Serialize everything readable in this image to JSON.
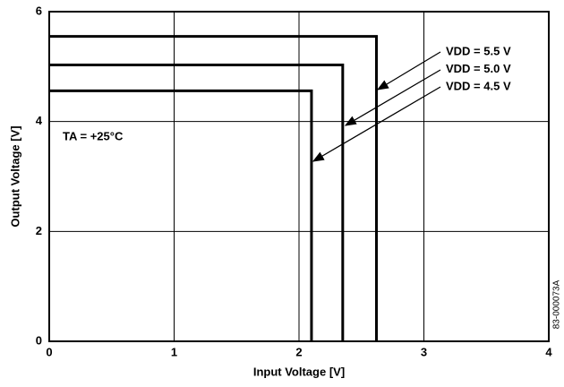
{
  "chart_data": {
    "type": "line",
    "x_label": "Input Voltage [V]",
    "y_label": "Output Voltage [V]",
    "xlim": [
      0,
      4
    ],
    "xticks": [
      0,
      1,
      2,
      3,
      4
    ],
    "ylim": [
      0,
      6
    ],
    "yticks": [
      0,
      2,
      4,
      6
    ],
    "grid": true,
    "series": [
      {
        "name": "VDD = 5.5 V",
        "color": "#000000",
        "x": [
          0,
          2.62,
          2.62
        ],
        "values": [
          5.55,
          5.55,
          0
        ]
      },
      {
        "name": "VDD = 5.0 V",
        "color": "#000000",
        "x": [
          0,
          2.35,
          2.35
        ],
        "values": [
          5.03,
          5.03,
          0
        ]
      },
      {
        "name": "VDD = 4.5 V",
        "color": "#000000",
        "x": [
          0,
          2.1,
          2.1
        ],
        "values": [
          4.56,
          4.56,
          0
        ]
      }
    ],
    "annotations": [
      "TA = +25°C",
      "83-000073A"
    ]
  }
}
